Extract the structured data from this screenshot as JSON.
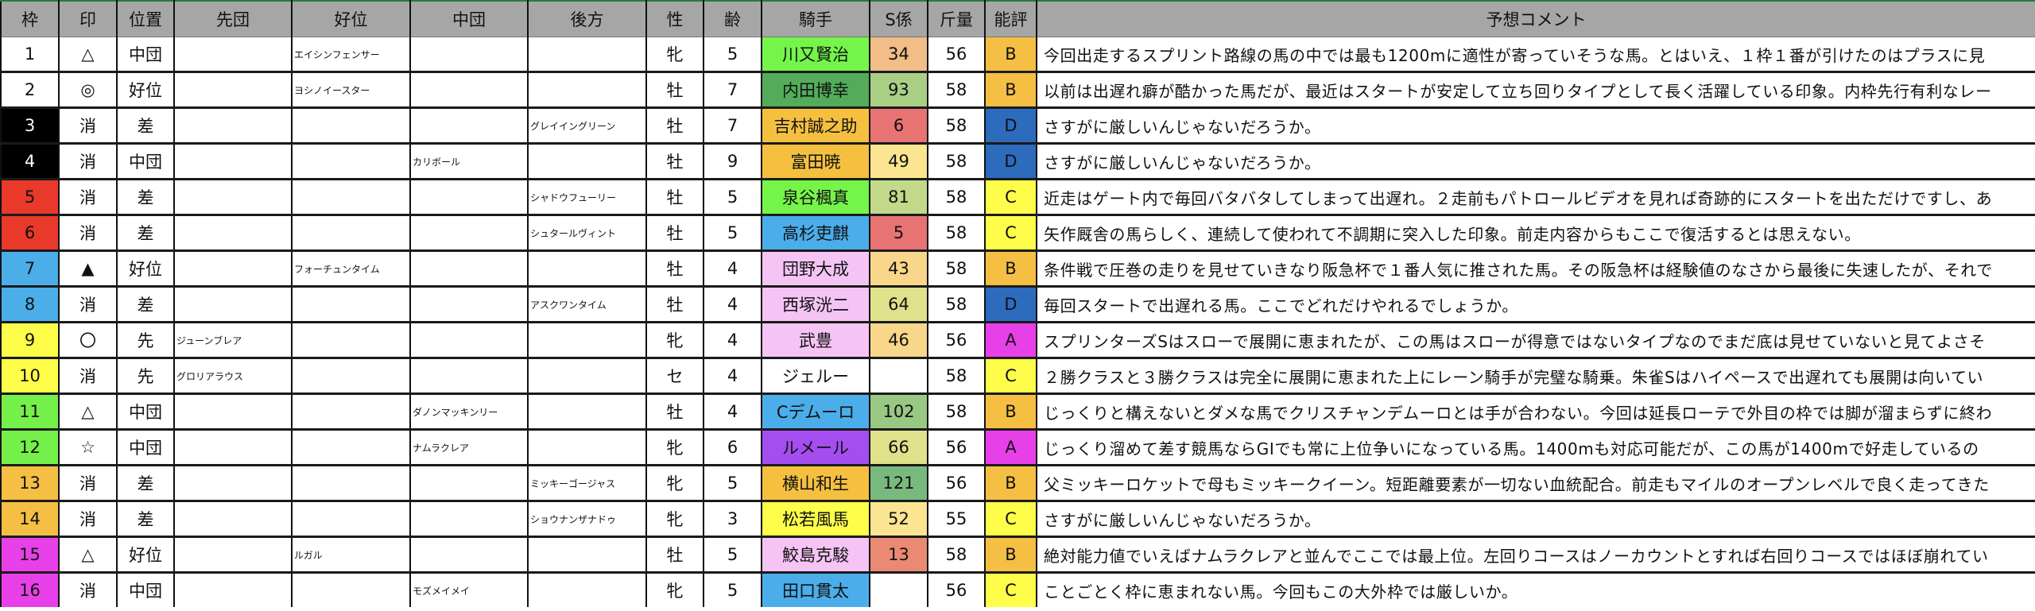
{
  "headers": [
    "枠",
    "印",
    "位置",
    "先団",
    "好位",
    "中団",
    "後方",
    "性",
    "齢",
    "騎手",
    "S係",
    "斤量",
    "能評",
    "予想コメント"
  ],
  "rows": [
    {
      "waku": "1",
      "mark": "△",
      "pos": "中団",
      "sendan": "",
      "koui": "エイシンフェンサー",
      "chudan": "",
      "kohou": "",
      "sex": "牝",
      "age": "5",
      "jockey": "川又賢治",
      "s": "34",
      "kin": "56",
      "hyo": "B",
      "comment": "今回出走するスプリント路線の馬の中では最も1200mに適性が寄っていそうな馬。とはいえ、１枠１番が引けたのはプラスに見",
      "waku_color": "#ffffff",
      "jockey_color": "#75f54a",
      "s_color": "#f2bd87",
      "hyo_color": "#f5bf44"
    },
    {
      "waku": "2",
      "mark": "◎",
      "pos": "好位",
      "sendan": "",
      "koui": "ヨシノイースター",
      "chudan": "",
      "kohou": "",
      "sex": "牡",
      "age": "7",
      "jockey": "内田博幸",
      "s": "93",
      "kin": "58",
      "hyo": "B",
      "comment": "以前は出遅れ癖が酷かった馬だが、最近はスタートが安定して立ち回りタイプとして長く活躍している印象。内枠先行有利なレー",
      "waku_color": "#ffffff",
      "jockey_color": "#52ac5a",
      "s_color": "#a9cf85",
      "hyo_color": "#f5bf44"
    },
    {
      "waku": "3",
      "mark": "消",
      "pos": "差",
      "sendan": "",
      "koui": "",
      "chudan": "",
      "kohou": "グレイイングリーン",
      "sex": "牡",
      "age": "7",
      "jockey": "吉村誠之助",
      "s": "6",
      "kin": "58",
      "hyo": "D",
      "comment": "さすがに厳しいんじゃないだろうか。",
      "waku_color": "#000000",
      "jockey_color": "#f5c040",
      "s_color": "#e87373",
      "hyo_color": "#2d6bbd"
    },
    {
      "waku": "4",
      "mark": "消",
      "pos": "中団",
      "sendan": "",
      "koui": "",
      "chudan": "カリボール",
      "kohou": "",
      "sex": "牡",
      "age": "9",
      "jockey": "富田暁",
      "s": "49",
      "kin": "58",
      "hyo": "D",
      "comment": "さすがに厳しいんじゃないだろうか。",
      "waku_color": "#000000",
      "jockey_color": "#f5c040",
      "s_color": "#fbe590",
      "hyo_color": "#2d6bbd"
    },
    {
      "waku": "5",
      "mark": "消",
      "pos": "差",
      "sendan": "",
      "koui": "",
      "chudan": "",
      "kohou": "シャドウフューリー",
      "sex": "牡",
      "age": "5",
      "jockey": "泉谷楓真",
      "s": "81",
      "kin": "58",
      "hyo": "C",
      "comment": "近走はゲート内で毎回バタバタしてしまって出遅れ。２走前もパトロールビデオを見れば奇跡的にスタートを出ただけですし、あ",
      "waku_color": "#e8392a",
      "jockey_color": "#75f54a",
      "s_color": "#c2d98a",
      "hyo_color": "#fdfd4a"
    },
    {
      "waku": "6",
      "mark": "消",
      "pos": "差",
      "sendan": "",
      "koui": "",
      "chudan": "",
      "kohou": "シュタールヴィント",
      "sex": "牡",
      "age": "5",
      "jockey": "高杉吏麒",
      "s": "5",
      "kin": "58",
      "hyo": "C",
      "comment": "矢作厩舎の馬らしく、連続して使われて不調期に突入した印象。前走内容からもここで復活するとは思えない。",
      "waku_color": "#e8392a",
      "jockey_color": "#4baeea",
      "s_color": "#e87373",
      "hyo_color": "#fdfd4a"
    },
    {
      "waku": "7",
      "mark": "▲",
      "pos": "好位",
      "sendan": "",
      "koui": "フォーチュンタイム",
      "chudan": "",
      "kohou": "",
      "sex": "牡",
      "age": "4",
      "jockey": "団野大成",
      "s": "43",
      "kin": "58",
      "hyo": "B",
      "comment": "条件戦で圧巻の走りを見せていきなり阪急杯で１番人気に推された馬。その阪急杯は経験値のなさから最後に失速したが、それで",
      "waku_color": "#4baee8",
      "jockey_color": "#f5c4f5",
      "s_color": "#f8d68a",
      "hyo_color": "#f5bf44"
    },
    {
      "waku": "8",
      "mark": "消",
      "pos": "差",
      "sendan": "",
      "koui": "",
      "chudan": "",
      "kohou": "アスクワンタイム",
      "sex": "牡",
      "age": "4",
      "jockey": "西塚洸二",
      "s": "64",
      "kin": "58",
      "hyo": "D",
      "comment": "毎回スタートで出遅れる馬。ここでどれだけやれるでしょうか。",
      "waku_color": "#4baee8",
      "jockey_color": "#f5c4f5",
      "s_color": "#dfe18b",
      "hyo_color": "#2d6bbd"
    },
    {
      "waku": "9",
      "mark": "〇",
      "pos": "先",
      "sendan": "ジューンブレア",
      "koui": "",
      "chudan": "",
      "kohou": "",
      "sex": "牝",
      "age": "4",
      "jockey": "武豊",
      "s": "46",
      "kin": "56",
      "hyo": "A",
      "comment": "スプリンターズSはスローで展開に恵まれたが、この馬はスローが得意ではないタイプなのでまだ底は見せていないと見てよさそ",
      "waku_color": "#fdfd4a",
      "jockey_color": "#f5c4f5",
      "s_color": "#f8d68a",
      "hyo_color": "#e840e8"
    },
    {
      "waku": "10",
      "mark": "消",
      "pos": "先",
      "sendan": "グロリアラウス",
      "koui": "",
      "chudan": "",
      "kohou": "",
      "sex": "セ",
      "age": "4",
      "jockey": "ジェルー",
      "s": "",
      "kin": "58",
      "hyo": "C",
      "comment": "２勝クラスと３勝クラスは完全に展開に恵まれた上にレーン騎手が完璧な騎乗。朱雀Sはハイペースで出遅れても展開は向いてい",
      "waku_color": "#fdfd4a",
      "jockey_color": "#ffffff",
      "s_color": "#ffffff",
      "hyo_color": "#fdfd4a"
    },
    {
      "waku": "11",
      "mark": "△",
      "pos": "中団",
      "sendan": "",
      "koui": "",
      "chudan": "ダノンマッキンリー",
      "kohou": "",
      "sex": "牡",
      "age": "4",
      "jockey": "Cデムーロ",
      "s": "102",
      "kin": "58",
      "hyo": "B",
      "comment": "じっくりと構えないとダメな馬でクリスチャンデムーロとは手が合わない。今回は延長ローテで外目の枠では脚が溜まらずに終わ",
      "waku_color": "#75f04a",
      "jockey_color": "#4baeea",
      "s_color": "#99c882",
      "hyo_color": "#f5bf44"
    },
    {
      "waku": "12",
      "mark": "☆",
      "pos": "中団",
      "sendan": "",
      "koui": "",
      "chudan": "ナムラクレア",
      "kohou": "",
      "sex": "牝",
      "age": "6",
      "jockey": "ルメール",
      "s": "66",
      "kin": "56",
      "hyo": "A",
      "comment": "じっくり溜めて差す競馬ならGⅠでも常に上位争いになっている馬。1400mも対応可能だが、この馬が1400mで好走しているの",
      "waku_color": "#75f04a",
      "jockey_color": "#a44ef0",
      "s_color": "#dfe18b",
      "hyo_color": "#e840e8"
    },
    {
      "waku": "13",
      "mark": "消",
      "pos": "差",
      "sendan": "",
      "koui": "",
      "chudan": "",
      "kohou": "ミッキーゴージャス",
      "sex": "牝",
      "age": "5",
      "jockey": "横山和生",
      "s": "121",
      "kin": "56",
      "hyo": "B",
      "comment": "父ミッキーロケットで母もミッキークイーン。短距離要素が一切ない血統配合。前走もマイルのオープンレベルで良く走ってきた",
      "waku_color": "#f5bf44",
      "jockey_color": "#f5c040",
      "s_color": "#78ba7d",
      "hyo_color": "#f5bf44"
    },
    {
      "waku": "14",
      "mark": "消",
      "pos": "差",
      "sendan": "",
      "koui": "",
      "chudan": "",
      "kohou": "ショウナンザナドゥ",
      "sex": "牝",
      "age": "3",
      "jockey": "松若風馬",
      "s": "52",
      "kin": "55",
      "hyo": "C",
      "comment": "さすがに厳しいんじゃないだろうか。",
      "waku_color": "#f5bf44",
      "jockey_color": "#fdfd4a",
      "s_color": "#fbe590",
      "hyo_color": "#fdfd4a"
    },
    {
      "waku": "15",
      "mark": "△",
      "pos": "好位",
      "sendan": "",
      "koui": "ルガル",
      "chudan": "",
      "kohou": "",
      "sex": "牡",
      "age": "5",
      "jockey": "鮫島克駿",
      "s": "13",
      "kin": "58",
      "hyo": "B",
      "comment": "絶対能力値でいえばナムラクレアと並んでここでは最上位。左回りコースはノーカウントとすれば右回りコースではほぼ崩れてい",
      "waku_color": "#e840e8",
      "jockey_color": "#f5c4f5",
      "s_color": "#ea8a73",
      "hyo_color": "#f5bf44"
    },
    {
      "waku": "16",
      "mark": "消",
      "pos": "中団",
      "sendan": "",
      "koui": "",
      "chudan": "モズメイメイ",
      "kohou": "",
      "sex": "牝",
      "age": "5",
      "jockey": "田口貫太",
      "s": "",
      "kin": "56",
      "hyo": "C",
      "comment": "ことごとく枠に恵まれない馬。今回もこの大外枠では厳しいか。",
      "waku_color": "#e840e8",
      "jockey_color": "#4baeea",
      "s_color": "#ffffff",
      "hyo_color": "#fdfd4a"
    }
  ]
}
